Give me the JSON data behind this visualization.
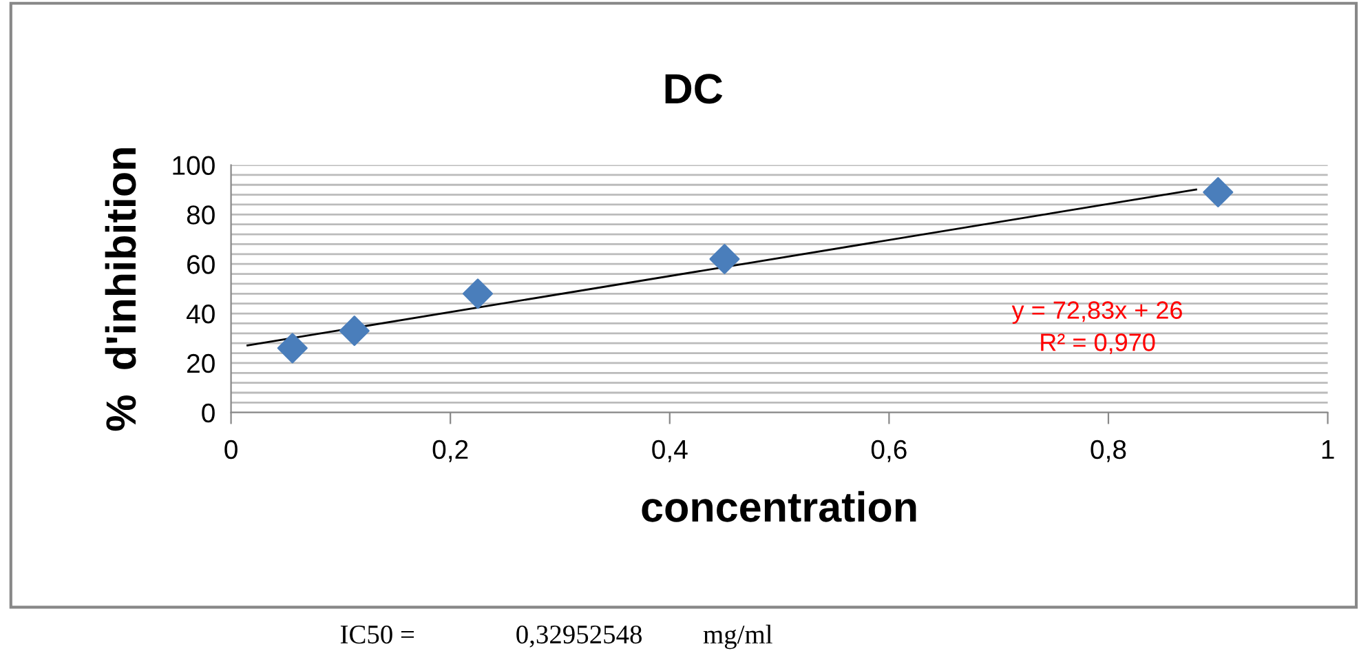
{
  "chart_data": {
    "type": "scatter",
    "title": "DC",
    "xlabel": "concentration",
    "ylabel": "%  d'inhibition",
    "grid": "y",
    "legend": false,
    "xlim": [
      0,
      1
    ],
    "ylim": [
      0,
      100
    ],
    "xticks": [
      0,
      {
        "value": 0.2,
        "label": "0,2"
      },
      {
        "value": 0.4,
        "label": "0,4"
      },
      {
        "value": 0.6,
        "label": "0,6"
      },
      {
        "value": 0.8,
        "label": "0,8"
      },
      1
    ],
    "yticks": [
      0,
      {
        "value": 4,
        "label": null
      },
      {
        "value": 8,
        "label": null
      },
      {
        "value": 12,
        "label": null
      },
      {
        "value": 16,
        "label": null
      },
      20,
      {
        "value": 24,
        "label": null
      },
      {
        "value": 28,
        "label": null
      },
      {
        "value": 32,
        "label": null
      },
      {
        "value": 36,
        "label": null
      },
      40,
      {
        "value": 44,
        "label": null
      },
      {
        "value": 48,
        "label": null
      },
      {
        "value": 52,
        "label": null
      },
      {
        "value": 56,
        "label": null
      },
      60,
      {
        "value": 64,
        "label": null
      },
      {
        "value": 68,
        "label": null
      },
      {
        "value": 72,
        "label": null
      },
      {
        "value": 76,
        "label": null
      },
      80,
      {
        "value": 84,
        "label": null
      },
      {
        "value": 88,
        "label": null
      },
      {
        "value": 92,
        "label": null
      },
      {
        "value": 96,
        "label": null
      },
      100
    ],
    "series": [
      {
        "color": "#4a7ebb",
        "marker": "diamond",
        "x": [
          0.056,
          0.1125,
          0.225,
          0.45,
          0.9
        ],
        "values": [
          26,
          33,
          48,
          62,
          89
        ]
      },
      {
        "type": "line",
        "color": "#000000",
        "marker": "none",
        "x": [
          0.015,
          0.88
        ],
        "values": [
          27.1,
          90.1
        ]
      }
    ],
    "annotations": [
      "y = 72,83x + 26\nR² = 0,970",
      "IC50 =               0,32952548         mg/ml"
    ]
  }
}
